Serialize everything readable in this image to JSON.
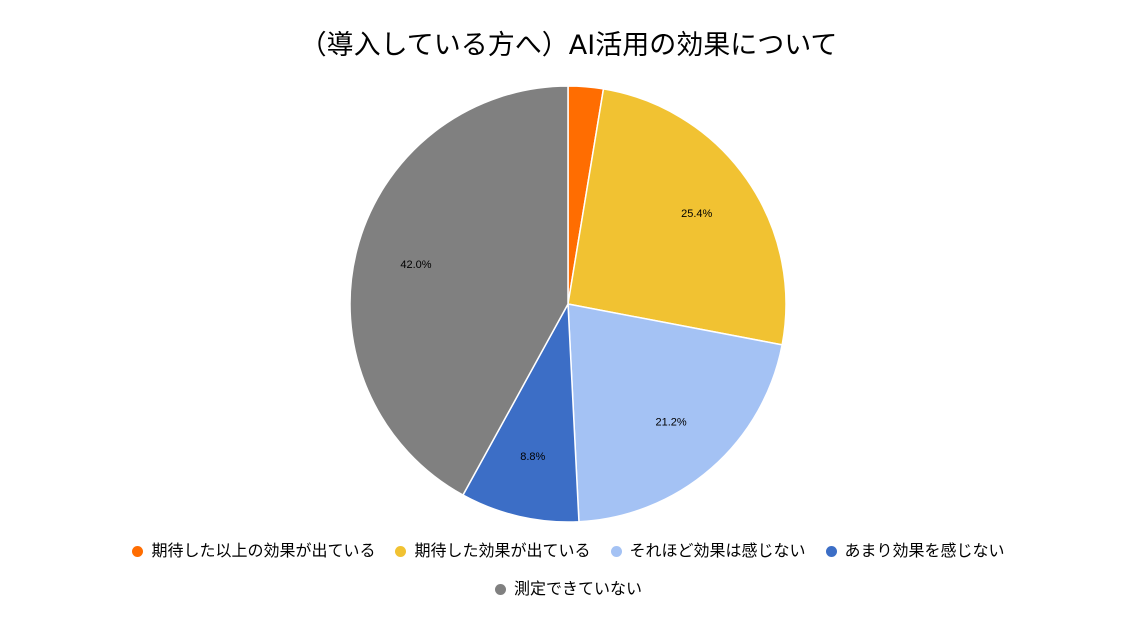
{
  "chart_data": {
    "type": "pie",
    "title": "（導入している方へ）AI活用の効果について",
    "legend_position": "bottom",
    "slices": [
      {
        "label": "期待した以上の効果が出ている",
        "value": 2.6,
        "display": "",
        "color": "#FF6D01"
      },
      {
        "label": "期待した効果が出ている",
        "value": 25.4,
        "display": "25.4%",
        "color": "#F1C232"
      },
      {
        "label": "それほど効果は感じない",
        "value": 21.2,
        "display": "21.2%",
        "color": "#A4C2F4"
      },
      {
        "label": "あまり効果を感じない",
        "value": 8.8,
        "display": "8.8%",
        "color": "#3C6EC6"
      },
      {
        "label": "測定できていない",
        "value": 42.0,
        "display": "42.0%",
        "color": "#808080"
      }
    ]
  }
}
